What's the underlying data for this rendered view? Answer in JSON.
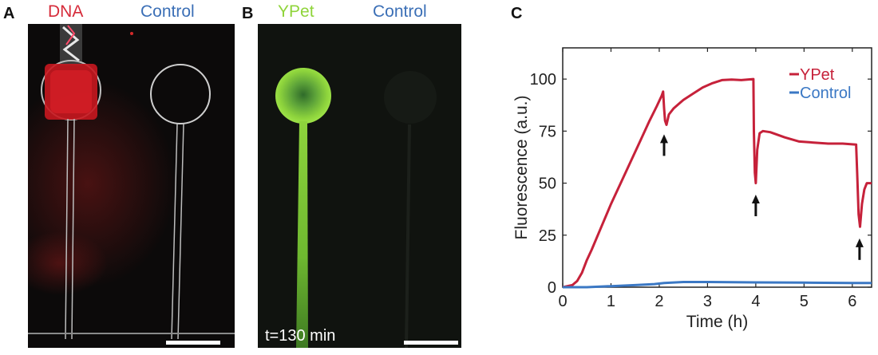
{
  "panels": {
    "a": {
      "letter": "A",
      "label_left": "DNA",
      "label_right": "Control",
      "label_left_color": "#d62b3a",
      "label_right_color": "#3b6fb6"
    },
    "b": {
      "letter": "B",
      "label_left": "YPet",
      "label_right": "Control",
      "label_left_color": "#8fd43a",
      "label_right_color": "#3b6fb6",
      "timestamp": "t=130 min"
    },
    "c": {
      "letter": "C"
    }
  },
  "chart_data": {
    "type": "line",
    "xlabel": "Time (h)",
    "ylabel": "Fluorescence (a.u.)",
    "xlim": [
      0,
      6.4
    ],
    "ylim": [
      0,
      115
    ],
    "xticks": [
      0,
      1,
      2,
      3,
      4,
      5,
      6
    ],
    "yticks": [
      0,
      25,
      50,
      75,
      100
    ],
    "legend_position": "top-right",
    "series": [
      {
        "name": "YPet",
        "color": "#c6213a",
        "points": [
          [
            0,
            0
          ],
          [
            0.2,
            1
          ],
          [
            0.3,
            3
          ],
          [
            0.4,
            7
          ],
          [
            0.5,
            13
          ],
          [
            0.6,
            18
          ],
          [
            0.8,
            29
          ],
          [
            1,
            40
          ],
          [
            1.2,
            50
          ],
          [
            1.4,
            60
          ],
          [
            1.6,
            70
          ],
          [
            1.8,
            80
          ],
          [
            1.95,
            87
          ],
          [
            2.05,
            92
          ],
          [
            2.08,
            94
          ],
          [
            2.1,
            86
          ],
          [
            2.12,
            80
          ],
          [
            2.15,
            78
          ],
          [
            2.2,
            83
          ],
          [
            2.3,
            86
          ],
          [
            2.5,
            90
          ],
          [
            2.7,
            93
          ],
          [
            2.9,
            96
          ],
          [
            3.1,
            98
          ],
          [
            3.3,
            99.5
          ],
          [
            3.5,
            99.8
          ],
          [
            3.7,
            99.5
          ],
          [
            3.95,
            100
          ],
          [
            3.96,
            75
          ],
          [
            3.98,
            55
          ],
          [
            4,
            50
          ],
          [
            4.03,
            66
          ],
          [
            4.08,
            74
          ],
          [
            4.15,
            75
          ],
          [
            4.3,
            74.5
          ],
          [
            4.6,
            72
          ],
          [
            4.9,
            70
          ],
          [
            5.2,
            69.5
          ],
          [
            5.5,
            69
          ],
          [
            5.8,
            69
          ],
          [
            6.08,
            68.5
          ],
          [
            6.1,
            55
          ],
          [
            6.13,
            35
          ],
          [
            6.16,
            29
          ],
          [
            6.2,
            40
          ],
          [
            6.25,
            47
          ],
          [
            6.3,
            50
          ],
          [
            6.4,
            50
          ]
        ]
      },
      {
        "name": "Control",
        "color": "#3b78c4",
        "points": [
          [
            0,
            0
          ],
          [
            0.5,
            0
          ],
          [
            1,
            0.5
          ],
          [
            1.5,
            1
          ],
          [
            1.9,
            1.5
          ],
          [
            2.1,
            2
          ],
          [
            2.5,
            2.5
          ],
          [
            3,
            2.5
          ],
          [
            4,
            2.3
          ],
          [
            5,
            2.2
          ],
          [
            6,
            2
          ],
          [
            6.4,
            2
          ]
        ]
      }
    ],
    "annotations": [
      {
        "type": "arrow",
        "x": 2.1,
        "y": 70
      },
      {
        "type": "arrow",
        "x": 4.0,
        "y": 41
      },
      {
        "type": "arrow",
        "x": 6.15,
        "y": 20
      }
    ]
  }
}
